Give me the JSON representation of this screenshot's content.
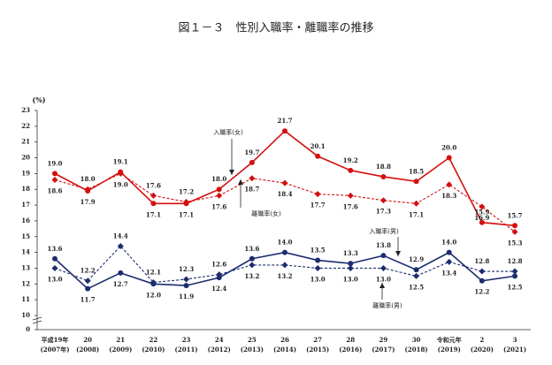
{
  "chart_data": {
    "type": "line",
    "title": "図１－３　性別入職率・離職率の推移",
    "y_unit": "(%)",
    "categories": [
      [
        "平成19年",
        "(2007年)"
      ],
      [
        "20",
        "(2008)"
      ],
      [
        "21",
        "(2009)"
      ],
      [
        "22",
        "(2010)"
      ],
      [
        "23",
        "(2011)"
      ],
      [
        "24",
        "(2012)"
      ],
      [
        "25",
        "(2013)"
      ],
      [
        "26",
        "(2014)"
      ],
      [
        "27",
        "(2015)"
      ],
      [
        "28",
        "(2016)"
      ],
      [
        "29",
        "(2017)"
      ],
      [
        "30",
        "(2018)"
      ],
      [
        "令和元年",
        "(2019)"
      ],
      [
        "2",
        "(2020)"
      ],
      [
        "3",
        "(2021)"
      ]
    ],
    "ylim": [
      0,
      23
    ],
    "axis_break": [
      0,
      10
    ],
    "yticks": [
      0,
      10,
      11,
      12,
      13,
      14,
      15,
      16,
      17,
      18,
      19,
      20,
      21,
      22,
      23
    ],
    "series": [
      {
        "name": "入職率(女)",
        "color": "#d40f0f",
        "dash": false,
        "marker": "circle",
        "values": [
          19.0,
          17.9,
          19.1,
          17.1,
          17.1,
          18.0,
          19.7,
          21.7,
          20.1,
          19.2,
          18.8,
          18.5,
          20.0,
          15.9,
          15.7
        ],
        "value_labels": [
          "19.0",
          "17.9",
          "19.1",
          "17.1",
          "17.1",
          "18.0",
          "19.7",
          "21.7",
          "20.1",
          "19.2",
          "18.8",
          "18.5",
          "20.0",
          "15.9",
          "15.7"
        ]
      },
      {
        "name": "離職率(女)",
        "color": "#d40f0f",
        "dash": true,
        "marker": "diamond",
        "values": [
          18.6,
          18.0,
          19.0,
          17.6,
          17.2,
          17.6,
          18.7,
          18.4,
          17.7,
          17.6,
          17.3,
          17.1,
          18.3,
          16.9,
          15.3
        ],
        "value_labels": [
          "18.6",
          "18.0",
          "19.0",
          "17.6",
          "17.2",
          "17.6",
          "18.7",
          "18.4",
          "17.7",
          "17.6",
          "17.3",
          "17.1",
          "18.3",
          "16.9",
          "15.3"
        ]
      },
      {
        "name": "入職率(男)",
        "color": "#1c2d6e",
        "dash": false,
        "marker": "circle",
        "values": [
          13.6,
          11.7,
          12.7,
          12.0,
          11.9,
          12.4,
          13.6,
          14.0,
          13.5,
          13.3,
          13.8,
          12.9,
          14.0,
          12.2,
          12.5
        ],
        "value_labels": [
          "13.6",
          "11.7",
          "12.7",
          "12.0",
          "11.9",
          "12.4",
          "13.6",
          "14.0",
          "13.5",
          "13.3",
          "13.8",
          "12.9",
          "14.0",
          "12.2",
          "12.5"
        ]
      },
      {
        "name": "離職率(男)",
        "color": "#1c2d6e",
        "dash": true,
        "marker": "diamond",
        "values": [
          13.0,
          12.2,
          14.4,
          12.1,
          12.3,
          12.6,
          13.2,
          13.2,
          13.0,
          13.0,
          13.0,
          12.5,
          13.4,
          12.8,
          12.8
        ],
        "value_labels": [
          "13.0",
          "12.2",
          "14.4",
          "12.1",
          "12.3",
          "12.6",
          "13.2",
          "13.2",
          "13.0",
          "13.0",
          "13.0",
          "12.5",
          "13.4",
          "12.8",
          "12.8"
        ]
      }
    ]
  }
}
